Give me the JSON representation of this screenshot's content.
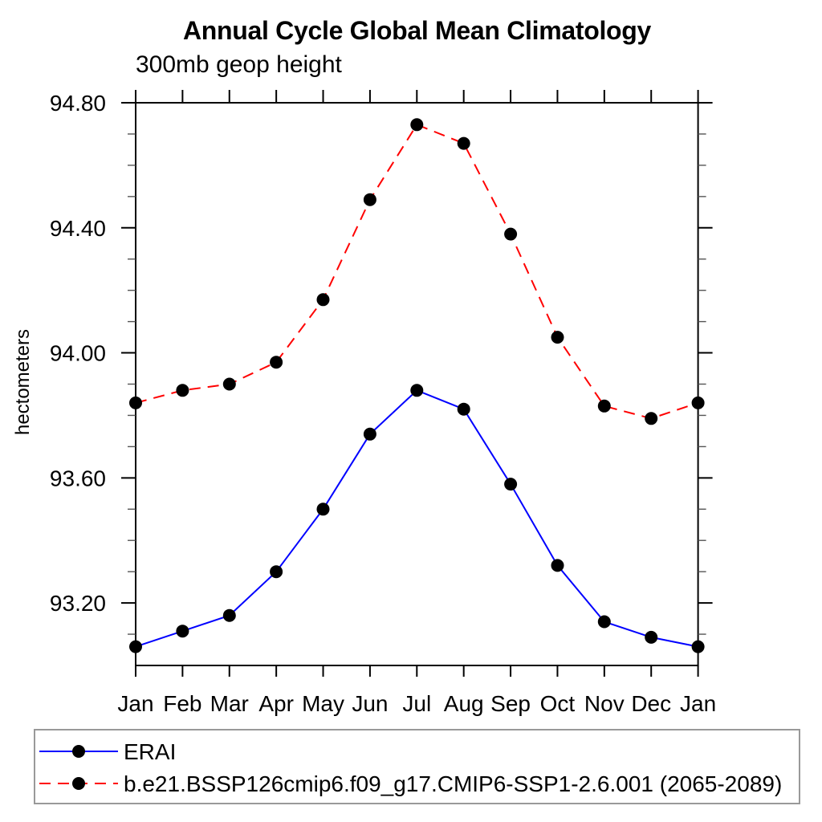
{
  "header": {
    "title": "Annual Cycle Global Mean Climatology",
    "subtitle": "300mb geop height"
  },
  "chart_data": {
    "type": "line",
    "title": "Annual Cycle Global Mean Climatology",
    "subtitle": "300mb geop height",
    "xlabel": "",
    "ylabel": "hectometers",
    "categories": [
      "Jan",
      "Feb",
      "Mar",
      "Apr",
      "May",
      "Jun",
      "Jul",
      "Aug",
      "Sep",
      "Oct",
      "Nov",
      "Dec",
      "Jan"
    ],
    "ylim": [
      93.0,
      94.8
    ],
    "ytick_major": [
      93.2,
      93.6,
      94.0,
      94.4,
      94.8
    ],
    "ytick_major_labels": [
      "93.20",
      "93.60",
      "94.00",
      "94.40",
      "94.80"
    ],
    "ytick_minor_step": 0.1,
    "grid": false,
    "legend_position": "bottom",
    "series": [
      {
        "name": "ERAI",
        "color": "#0000ff",
        "line_style": "solid",
        "marker": "circle",
        "marker_color": "#000000",
        "values": [
          93.06,
          93.11,
          93.16,
          93.3,
          93.5,
          93.74,
          93.88,
          93.82,
          93.58,
          93.32,
          93.14,
          93.09,
          93.06
        ]
      },
      {
        "name": "b.e21.BSSP126cmip6.f09_g17.CMIP6-SSP1-2.6.001 (2065-2089)",
        "color": "#ff0000",
        "line_style": "dashed",
        "marker": "circle",
        "marker_color": "#000000",
        "values": [
          93.84,
          93.88,
          93.9,
          93.97,
          94.17,
          94.49,
          94.73,
          94.67,
          94.38,
          94.05,
          93.83,
          93.79,
          93.84
        ]
      }
    ]
  }
}
